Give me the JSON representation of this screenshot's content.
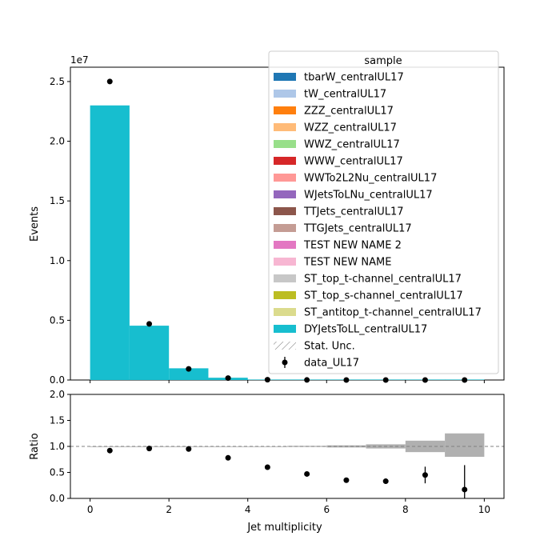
{
  "chart_data": [
    {
      "type": "bar",
      "subtype": "stacked-histogram",
      "xlabel": "",
      "ylabel": "Events",
      "y_offset_label": "1e7",
      "xlim": [
        -0.5,
        10.5
      ],
      "ylim": [
        0,
        2.62
      ],
      "y_scale_factor": 10000000,
      "y_ticks": [
        0.0,
        0.5,
        1.0,
        1.5,
        2.0,
        2.5
      ],
      "y_tick_labels": [
        "0.0",
        "0.5",
        "1.0",
        "1.5",
        "2.0",
        "2.5"
      ],
      "bin_edges": [
        0,
        1,
        2,
        3,
        4,
        5,
        6,
        7,
        8,
        9,
        10
      ],
      "series": [
        {
          "name": "DYJetsToLL_centralUL17",
          "color": "#17becf",
          "values": [
            2.3,
            0.455,
            0.098,
            0.019,
            0.004,
            0.001,
            0.0003,
            0.0001,
            3e-05,
            1e-05
          ]
        }
      ],
      "data_points": {
        "name": "data_UL17",
        "x": [
          0.5,
          1.5,
          2.5,
          3.5,
          4.5,
          5.5,
          6.5,
          7.5,
          8.5,
          9.5
        ],
        "y": [
          2.5,
          0.47,
          0.093,
          0.016,
          0.0025,
          0.0005,
          0.0001,
          3e-05,
          1e-05,
          3e-06
        ]
      },
      "legend": {
        "title": "sample",
        "placement": "top-right",
        "entries": [
          {
            "label": "tbarW_centralUL17",
            "color": "#1f77b4",
            "kind": "patch"
          },
          {
            "label": "tW_centralUL17",
            "color": "#aec7e8",
            "kind": "patch"
          },
          {
            "label": "ZZZ_centralUL17",
            "color": "#ff7f0e",
            "kind": "patch"
          },
          {
            "label": "WZZ_centralUL17",
            "color": "#ffbb78",
            "kind": "patch"
          },
          {
            "label": "WWZ_centralUL17",
            "color": "#98df8a",
            "kind": "patch"
          },
          {
            "label": "WWW_centralUL17",
            "color": "#d62728",
            "kind": "patch"
          },
          {
            "label": "WWTo2L2Nu_centralUL17",
            "color": "#ff9896",
            "kind": "patch"
          },
          {
            "label": "WJetsToLNu_centralUL17",
            "color": "#9467bd",
            "kind": "patch"
          },
          {
            "label": "TTJets_centralUL17",
            "color": "#8c564b",
            "kind": "patch"
          },
          {
            "label": "TTGJets_centralUL17",
            "color": "#c49c94",
            "kind": "patch"
          },
          {
            "label": "TEST NEW NAME 2",
            "color": "#e377c2",
            "kind": "patch"
          },
          {
            "label": "TEST NEW NAME",
            "color": "#f7b6d2",
            "kind": "patch"
          },
          {
            "label": "ST_top_t-channel_centralUL17",
            "color": "#c7c7c7",
            "kind": "patch"
          },
          {
            "label": "ST_top_s-channel_centralUL17",
            "color": "#bcbd22",
            "kind": "patch"
          },
          {
            "label": "ST_antitop_t-channel_centralUL17",
            "color": "#dbdb8d",
            "kind": "patch"
          },
          {
            "label": "DYJetsToLL_centralUL17",
            "color": "#17becf",
            "kind": "patch"
          },
          {
            "label": "Stat. Unc.",
            "color": "#808080",
            "kind": "hatch"
          },
          {
            "label": "data_UL17",
            "color": "#000000",
            "kind": "errorbar"
          }
        ]
      }
    },
    {
      "type": "scatter",
      "subtype": "ratio",
      "xlabel": "Jet multiplicity",
      "ylabel": "Ratio",
      "xlim": [
        -0.5,
        10.5
      ],
      "ylim": [
        0,
        2
      ],
      "x_ticks": [
        0,
        2,
        4,
        6,
        8,
        10
      ],
      "x_tick_labels": [
        "0",
        "2",
        "4",
        "6",
        "8",
        "10"
      ],
      "y_ticks": [
        0.0,
        0.5,
        1.0,
        1.5,
        2.0
      ],
      "y_tick_labels": [
        "0.0",
        "0.5",
        "1.0",
        "1.5",
        "2.0"
      ],
      "reference_line": 1.0,
      "x": [
        0.5,
        1.5,
        2.5,
        3.5,
        4.5,
        5.5,
        6.5,
        7.5,
        8.5,
        9.5
      ],
      "y": [
        0.92,
        0.96,
        0.95,
        0.78,
        0.6,
        0.47,
        0.35,
        0.33,
        0.45,
        0.17
      ],
      "yerr": [
        0.0,
        0.0,
        0.0,
        0.0,
        0.0,
        0.0,
        0.0,
        0.05,
        0.16,
        0.47
      ],
      "unc_band": {
        "bin_edges": [
          0,
          1,
          2,
          3,
          4,
          5,
          6,
          7,
          8,
          9,
          10
        ],
        "low": [
          1.0,
          1.0,
          1.0,
          1.0,
          1.0,
          0.99,
          0.98,
          0.96,
          0.89,
          0.8
        ],
        "high": [
          1.0,
          1.0,
          1.0,
          1.0,
          1.0,
          1.01,
          1.02,
          1.04,
          1.11,
          1.25
        ],
        "color": "#b0b0b0"
      }
    }
  ]
}
